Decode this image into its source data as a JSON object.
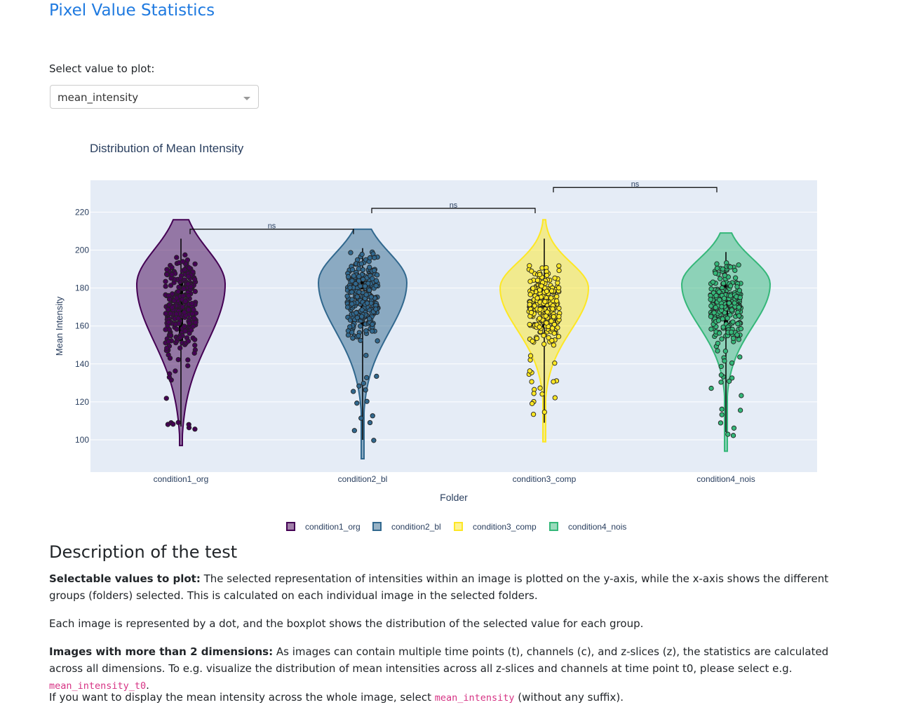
{
  "page": {
    "title": "Pixel Value Statistics"
  },
  "selector": {
    "label": "Select value to plot:",
    "selected": "mean_intensity"
  },
  "colors": {
    "title": "#1f7ae0",
    "plot_bg": "#e5ecf6",
    "series": [
      "#440154",
      "#31688e",
      "#fde725",
      "#35b779"
    ],
    "code": "#d63384"
  },
  "chart_data": {
    "type": "violin",
    "title": "Distribution of Mean Intensity",
    "xlabel": "Folder",
    "ylabel": "Mean Intensity",
    "categories": [
      "condition1_org",
      "condition2_bl",
      "condition3_comp",
      "condition4_nois"
    ],
    "ylim": [
      88,
      222
    ],
    "yticks": [
      100,
      120,
      140,
      160,
      180,
      200,
      220
    ],
    "grid": true,
    "legend_position": "bottom-center",
    "series": [
      {
        "name": "condition1_org",
        "min": 97,
        "max": 216,
        "q1": 152,
        "median": 176,
        "q3": 186,
        "peak": 182
      },
      {
        "name": "condition2_bl",
        "min": 90,
        "max": 211,
        "q1": 160,
        "median": 179,
        "q3": 188,
        "peak": 183
      },
      {
        "name": "condition3_comp",
        "min": 99,
        "max": 216,
        "q1": 159,
        "median": 172,
        "q3": 182,
        "peak": 180
      },
      {
        "name": "condition4_nois",
        "min": 94,
        "max": 209,
        "q1": 160,
        "median": 175,
        "q3": 183,
        "peak": 182
      }
    ],
    "annotations": [
      {
        "text": "ns",
        "from": 0,
        "to": 1,
        "y": 211
      },
      {
        "text": "ns",
        "from": 1,
        "to": 2,
        "y": 222
      },
      {
        "text": "ns",
        "from": 2,
        "to": 3,
        "y": 233
      }
    ]
  },
  "description": {
    "title": "Description of the test",
    "p1_bold": "Selectable values to plot:",
    "p1_text": " The selected representation of intensities within an image is plotted on the y-axis, while the x-axis shows the different groups (folders) selected. This is calculated on each individual image in the selected folders.",
    "p2_text": "Each image is represented by a dot, and the boxplot shows the distribution of the selected value for each group.",
    "p3_bold": "Images with more than 2 dimensions:",
    "p3_text": " As images can contain multiple time points (t), channels (c), and z-slices (z), the statistics are calculated across all dimensions. To e.g. visualize the distribution of mean intensities across all z-slices and channels at time point t0, please select e.g. ",
    "p3_code": "mean_intensity_t0",
    "p3_end": ".",
    "p4_text": "If you want to display the mean intensity across the whole image, select ",
    "p4_code": "mean_intensity",
    "p4_end": " (without any suffix)."
  }
}
